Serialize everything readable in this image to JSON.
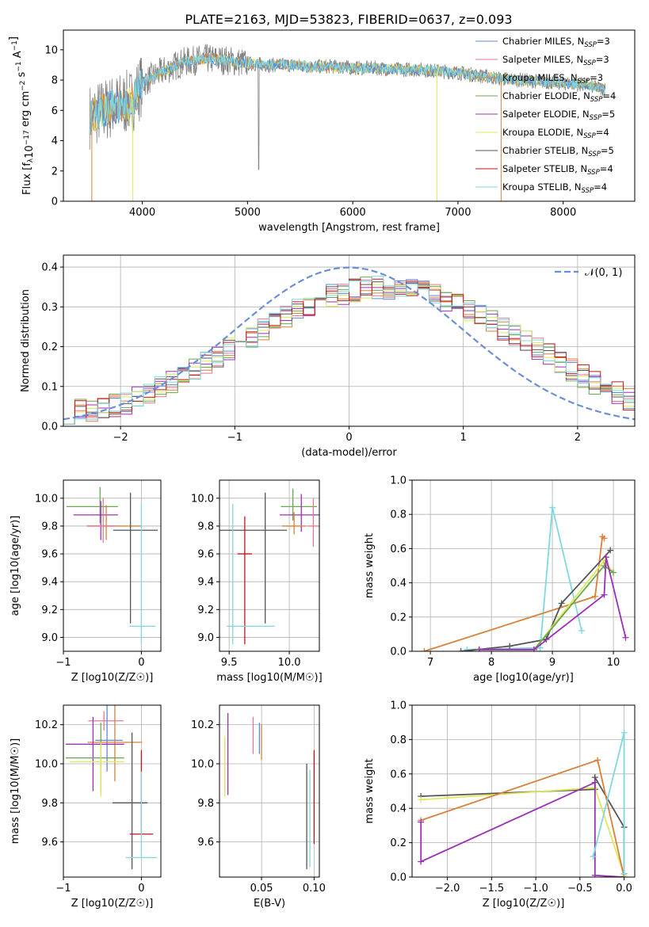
{
  "title": "PLATE=2163, MJD=53823, FIBERID=0637, z=0.093",
  "colors": {
    "chabrier_miles": "#5b8ad8",
    "salpeter_miles": "#e8778f",
    "kroupa_miles": "#d9803a",
    "chabrier_elodie": "#6aa84f",
    "salpeter_elodie": "#9b30b5",
    "kroupa_elodie": "#dfe85a",
    "chabrier_stelib": "#555555",
    "salpeter_stelib": "#c0161b",
    "kroupa_stelib": "#7fd8dd",
    "gaussian": "#6a8fd8",
    "data": "#808080"
  },
  "chart_data": [
    {
      "type": "line",
      "panel": "spectrum",
      "xlabel": "wavelength [Angstrom, rest frame]",
      "ylabel": "Flux [f_λ10^-17 erg cm^-2 s^-1 A^-1]",
      "xlim": [
        3250,
        8680
      ],
      "ylim": [
        0,
        11.3
      ],
      "xticks": [
        4000,
        5000,
        6000,
        7000,
        8000
      ],
      "yticks": [
        0,
        2,
        4,
        6,
        8,
        10
      ],
      "legend_location": "upper-right",
      "legend": [
        {
          "label": "Chabrier MILES, N",
          "sub": "SSP",
          "tail": "=3",
          "color_key": "chabrier_miles"
        },
        {
          "label": "Salpeter MILES, N",
          "sub": "SSP",
          "tail": "=3",
          "color_key": "salpeter_miles"
        },
        {
          "label": "Kroupa MILES, N",
          "sub": "SSP",
          "tail": "=3",
          "color_key": "kroupa_miles"
        },
        {
          "label": "Chabrier ELODIE, N",
          "sub": "SSP",
          "tail": "=4",
          "color_key": "chabrier_elodie"
        },
        {
          "label": "Salpeter ELODIE, N",
          "sub": "SSP",
          "tail": "=5",
          "color_key": "salpeter_elodie"
        },
        {
          "label": "Kroupa ELODIE, N",
          "sub": "SSP",
          "tail": "=4",
          "color_key": "kroupa_elodie"
        },
        {
          "label": "Chabrier STELIB, N",
          "sub": "SSP",
          "tail": "=5",
          "color_key": "chabrier_stelib"
        },
        {
          "label": "Salpeter STELIB, N",
          "sub": "SSP",
          "tail": "=4",
          "color_key": "salpeter_stelib"
        },
        {
          "label": "Kroupa STELIB, N",
          "sub": "SSP",
          "tail": "=4",
          "color_key": "kroupa_stelib"
        }
      ],
      "continuum": {
        "x": [
          3500,
          3700,
          3900,
          4000,
          4200,
          4400,
          4600,
          4800,
          5000,
          5200,
          5400,
          5600,
          5800,
          6000,
          6200,
          6400,
          6600,
          6800,
          7000,
          7200,
          7400,
          7600,
          7800,
          8000,
          8200,
          8400
        ],
        "y": [
          5.6,
          6.2,
          6.6,
          7.8,
          8.6,
          9.2,
          9.4,
          9.3,
          9.1,
          9.0,
          9.0,
          8.9,
          8.9,
          8.8,
          8.8,
          8.7,
          8.7,
          8.6,
          8.5,
          8.3,
          8.1,
          8.0,
          7.9,
          7.8,
          7.7,
          7.4
        ]
      }
    },
    {
      "type": "step",
      "panel": "residuals",
      "xlabel": "(data-model)/error",
      "ylabel": "Normed distribution",
      "xlim": [
        -2.5,
        2.5
      ],
      "ylim": [
        0,
        0.43
      ],
      "xticks": [
        -2,
        -1,
        0,
        1,
        2
      ],
      "yticks": [
        0.0,
        0.1,
        0.2,
        0.3,
        0.4
      ],
      "legend": [
        {
          "label": "𝒩(0, 1)",
          "color_key": "gaussian",
          "style": "dashed"
        }
      ],
      "bin_edges_start": -2.5,
      "bin_width": 0.1,
      "hist_base": [
        0.035,
        0.038,
        0.042,
        0.045,
        0.052,
        0.06,
        0.072,
        0.082,
        0.095,
        0.11,
        0.125,
        0.142,
        0.16,
        0.178,
        0.195,
        0.212,
        0.228,
        0.245,
        0.262,
        0.278,
        0.292,
        0.305,
        0.318,
        0.328,
        0.336,
        0.342,
        0.346,
        0.348,
        0.348,
        0.346,
        0.342,
        0.336,
        0.328,
        0.318,
        0.305,
        0.292,
        0.278,
        0.262,
        0.245,
        0.228,
        0.212,
        0.195,
        0.178,
        0.16,
        0.142,
        0.125,
        0.11,
        0.095,
        0.082,
        0.07
      ]
    },
    {
      "type": "errorbar",
      "panel": "age_vs_Z",
      "xlabel": "Z [log10(Z/Z☉)]",
      "ylabel": "age [log10(age/yr)]",
      "xlim": [
        -1.0,
        0.25
      ],
      "ylim": [
        8.9,
        10.13
      ],
      "xticks": [
        -1,
        0
      ],
      "yticks": [
        9.0,
        9.2,
        9.4,
        9.6,
        9.8,
        10.0
      ],
      "points": [
        {
          "color_key": "chabrier_elodie",
          "x": -0.53,
          "y": 9.94,
          "xerr": [
            0.43,
            0.23
          ],
          "yerr": [
            0.12,
            0.14
          ]
        },
        {
          "color_key": "salpeter_elodie",
          "x": -0.52,
          "y": 9.88,
          "xerr": [
            0.35,
            0.22
          ],
          "yerr": [
            0.18,
            0.1
          ]
        },
        {
          "color_key": "kroupa_miles",
          "x": -0.45,
          "y": 9.8,
          "xerr": [
            0.25,
            0.45
          ],
          "yerr": [
            0.1,
            0.15
          ]
        },
        {
          "color_key": "salpeter_miles",
          "x": -0.49,
          "y": 9.8,
          "xerr": [
            0.2,
            0.18
          ],
          "yerr": [
            0.12,
            0.2
          ]
        },
        {
          "color_key": "chabrier_stelib",
          "x": -0.14,
          "y": 9.77,
          "xerr": [
            0.22,
            0.35
          ],
          "yerr": [
            0.67,
            0.27
          ]
        },
        {
          "color_key": "kroupa_stelib",
          "x": 0.0,
          "y": 9.08,
          "xerr": [
            0.15,
            0.18
          ],
          "yerr": [
            0.13,
            0.88
          ]
        }
      ]
    },
    {
      "type": "errorbar",
      "panel": "age_vs_mass",
      "xlabel": "mass [log10(M/M☉)]",
      "ylabel": "",
      "xlim": [
        9.42,
        10.25
      ],
      "ylim": [
        8.9,
        10.13
      ],
      "xticks": [
        9.5,
        10.0
      ],
      "yticks": [
        9.0,
        9.2,
        9.4,
        9.6,
        9.8,
        10.0
      ],
      "points": [
        {
          "color_key": "chabrier_elodie",
          "x": 10.03,
          "y": 9.94,
          "xerr": [
            0.1,
            0.2
          ],
          "yerr": [
            0.1,
            0.13
          ]
        },
        {
          "color_key": "salpeter_elodie",
          "x": 10.1,
          "y": 9.88,
          "xerr": [
            0.18,
            0.22
          ],
          "yerr": [
            0.12,
            0.15
          ]
        },
        {
          "color_key": "kroupa_miles",
          "x": 10.04,
          "y": 9.8,
          "xerr": [
            0.1,
            0.1
          ],
          "yerr": [
            0.06,
            0.1
          ]
        },
        {
          "color_key": "salpeter_miles",
          "x": 10.2,
          "y": 9.8,
          "xerr": [
            0.05,
            0.05
          ],
          "yerr": [
            0.15,
            0.2
          ]
        },
        {
          "color_key": "chabrier_stelib",
          "x": 9.8,
          "y": 9.77,
          "xerr": [
            0.38,
            0.18
          ],
          "yerr": [
            0.67,
            0.27
          ]
        },
        {
          "color_key": "salpeter_stelib",
          "x": 9.63,
          "y": 9.6,
          "xerr": [
            0.06,
            0.06
          ],
          "yerr": [
            0.65,
            0.27
          ]
        },
        {
          "color_key": "kroupa_stelib",
          "x": 9.53,
          "y": 9.08,
          "xerr": [
            0.05,
            0.35
          ],
          "yerr": [
            0.13,
            0.88
          ]
        }
      ]
    },
    {
      "type": "line",
      "panel": "weight_vs_age",
      "xlabel": "age [log10(age/yr)]",
      "ylabel": "mass weight",
      "xlim": [
        6.7,
        10.35
      ],
      "ylim": [
        0,
        1.0
      ],
      "xticks": [
        7,
        8,
        9,
        10
      ],
      "yticks": [
        0.0,
        0.2,
        0.4,
        0.6,
        0.8,
        1.0
      ],
      "series": [
        {
          "color_key": "kroupa_stelib",
          "x": [
            7.6,
            8.8,
            9.0,
            9.48
          ],
          "y": [
            0.01,
            0.02,
            0.84,
            0.12
          ]
        },
        {
          "color_key": "kroupa_miles",
          "x": [
            6.9,
            9.7,
            9.82,
            9.85
          ],
          "y": [
            0.0,
            0.32,
            0.67,
            0.66
          ]
        },
        {
          "color_key": "chabrier_stelib",
          "x": [
            7.5,
            8.3,
            8.9,
            9.15,
            9.95
          ],
          "y": [
            0.0,
            0.03,
            0.07,
            0.28,
            0.59
          ]
        },
        {
          "color_key": "kroupa_elodie",
          "x": [
            7.8,
            8.7,
            9.85,
            10.0
          ],
          "y": [
            0.01,
            0.01,
            0.53,
            0.46
          ]
        },
        {
          "color_key": "chabrier_elodie",
          "x": [
            7.8,
            8.7,
            9.85,
            10.0
          ],
          "y": [
            0.01,
            0.01,
            0.5,
            0.46
          ]
        },
        {
          "color_key": "salpeter_elodie",
          "x": [
            7.8,
            8.7,
            9.85,
            9.88,
            10.2
          ],
          "y": [
            0.01,
            0.01,
            0.33,
            0.55,
            0.08
          ]
        }
      ]
    },
    {
      "type": "errorbar",
      "panel": "mass_vs_Z",
      "xlabel": "Z [log10(Z/Z☉)]",
      "ylabel": "mass [log10(M/M☉)]",
      "xlim": [
        -1.0,
        0.25
      ],
      "ylim": [
        9.42,
        10.3
      ],
      "xticks": [
        -1,
        0
      ],
      "yticks": [
        9.6,
        9.8,
        10.0,
        10.2
      ],
      "points": [
        {
          "color_key": "salpeter_miles",
          "x": -0.48,
          "y": 10.22,
          "xerr": [
            0.2,
            0.25
          ],
          "yerr": [
            0.05,
            0.05
          ]
        },
        {
          "color_key": "chabrier_miles",
          "x": -0.44,
          "y": 10.12,
          "xerr": [
            0.15,
            0.2
          ],
          "yerr": [
            0.16,
            0.2
          ]
        },
        {
          "color_key": "kroupa_miles",
          "x": -0.34,
          "y": 10.11,
          "xerr": [
            0.35,
            0.35
          ],
          "yerr": [
            0.2,
            0.2
          ]
        },
        {
          "color_key": "salpeter_elodie",
          "x": -0.62,
          "y": 10.1,
          "xerr": [
            0.35,
            0.4
          ],
          "yerr": [
            0.24,
            0.14
          ]
        },
        {
          "color_key": "chabrier_elodie",
          "x": -0.52,
          "y": 10.03,
          "xerr": [
            0.45,
            0.3
          ],
          "yerr": [
            0.18,
            0.18
          ]
        },
        {
          "color_key": "kroupa_elodie",
          "x": -0.52,
          "y": 10.01,
          "xerr": [
            0.4,
            0.3
          ],
          "yerr": [
            0.18,
            0.1
          ]
        },
        {
          "color_key": "chabrier_stelib",
          "x": -0.12,
          "y": 9.8,
          "xerr": [
            0.25,
            0.2
          ],
          "yerr": [
            0.34,
            0.36
          ]
        },
        {
          "color_key": "salpeter_stelib",
          "x": 0.0,
          "y": 9.64,
          "xerr": [
            0.15,
            0.15
          ],
          "yerr": [
            0.0,
            0.43
          ]
        },
        {
          "color_key": "kroupa_stelib",
          "x": 0.0,
          "y": 9.52,
          "xerr": [
            0.2,
            0.2
          ],
          "yerr": [
            0.0,
            0.44
          ]
        }
      ]
    },
    {
      "type": "errorbar",
      "panel": "mass_vs_ebv",
      "xlabel": "E(B-V)",
      "ylabel": "",
      "xlim": [
        0.01,
        0.105
      ],
      "ylim": [
        9.42,
        10.3
      ],
      "xticks": [
        0.05,
        0.1
      ],
      "yticks": [
        9.6,
        9.8,
        10.0,
        10.2
      ],
      "points": [
        {
          "color_key": "kroupa_elodie",
          "x": 0.015,
          "y": 10.0,
          "xerr": [
            0.0,
            0.0
          ],
          "yerr": [
            0.17,
            0.14
          ]
        },
        {
          "color_key": "salpeter_elodie",
          "x": 0.018,
          "y": 10.1,
          "xerr": [
            0.0,
            0.0
          ],
          "yerr": [
            0.26,
            0.16
          ]
        },
        {
          "color_key": "salpeter_miles",
          "x": 0.042,
          "y": 10.12,
          "xerr": [
            0.0,
            0.0
          ],
          "yerr": [
            0.07,
            0.12
          ]
        },
        {
          "color_key": "chabrier_miles",
          "x": 0.048,
          "y": 10.08,
          "xerr": [
            0.0,
            0.0
          ],
          "yerr": [
            0.03,
            0.13
          ]
        },
        {
          "color_key": "kroupa_miles",
          "x": 0.05,
          "y": 10.1,
          "xerr": [
            0.0,
            0.0
          ],
          "yerr": [
            0.08,
            0.1
          ]
        },
        {
          "color_key": "chabrier_stelib",
          "x": 0.093,
          "y": 9.72,
          "xerr": [
            0.0,
            0.0
          ],
          "yerr": [
            0.26,
            0.28
          ]
        },
        {
          "color_key": "kroupa_stelib",
          "x": 0.096,
          "y": 9.75,
          "xerr": [
            0.0,
            0.0
          ],
          "yerr": [
            0.28,
            0.22
          ]
        },
        {
          "color_key": "salpeter_stelib",
          "x": 0.1,
          "y": 9.83,
          "xerr": [
            0.0,
            0.0
          ],
          "yerr": [
            0.24,
            0.24
          ]
        }
      ]
    },
    {
      "type": "line",
      "panel": "weight_vs_Z",
      "xlabel": "Z [log10(Z/Z☉)]",
      "ylabel": "mass weight",
      "xlim": [
        -2.4,
        0.12
      ],
      "ylim": [
        0,
        1.0
      ],
      "xticks": [
        -2.0,
        -1.5,
        -1.0,
        -0.5,
        0.0
      ],
      "yticks": [
        0.0,
        0.2,
        0.4,
        0.6,
        0.8,
        1.0
      ],
      "series": [
        {
          "color_key": "chabrier_stelib",
          "x": [
            -2.3,
            -0.33,
            -0.33,
            0.0,
            0.0
          ],
          "y": [
            0.47,
            0.51,
            0.58,
            0.29,
            0.02
          ]
        },
        {
          "color_key": "kroupa_elodie",
          "x": [
            -2.3,
            -0.33,
            0.0
          ],
          "y": [
            0.45,
            0.52,
            0.01
          ]
        },
        {
          "color_key": "kroupa_miles",
          "x": [
            -2.3,
            -0.3,
            0.0
          ],
          "y": [
            0.33,
            0.68,
            0.0
          ]
        },
        {
          "color_key": "salpeter_elodie",
          "x": [
            -2.3,
            -2.3,
            -0.33,
            -0.33,
            0.0
          ],
          "y": [
            0.32,
            0.09,
            0.55,
            0.01,
            0.0
          ]
        },
        {
          "color_key": "kroupa_stelib",
          "x": [
            -0.35,
            0.0,
            0.0
          ],
          "y": [
            0.12,
            0.84,
            0.02
          ]
        }
      ]
    }
  ]
}
